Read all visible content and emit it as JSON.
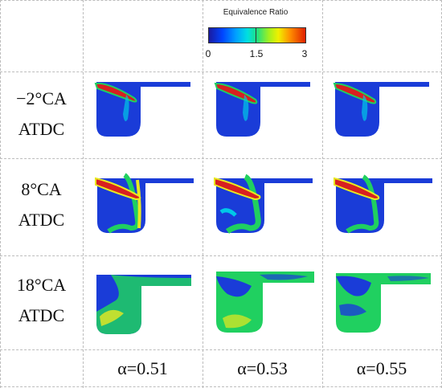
{
  "legend": {
    "title": "Equivalence Ratio",
    "ticks": [
      "0",
      "1.5",
      "3"
    ]
  },
  "rows": [
    {
      "line1": "−2°CA",
      "line2": "ATDC"
    },
    {
      "line1": "8°CA",
      "line2": "ATDC"
    },
    {
      "line1": "18°CA",
      "line2": "ATDC"
    }
  ],
  "columns": [
    "α=0.51",
    "α=0.53",
    "α=0.55"
  ],
  "colors": {
    "low": "#1a3cd8",
    "rich": "#d82020",
    "mid": "#20d060",
    "edge": "#00c8e8",
    "yellow": "#e8e820"
  }
}
